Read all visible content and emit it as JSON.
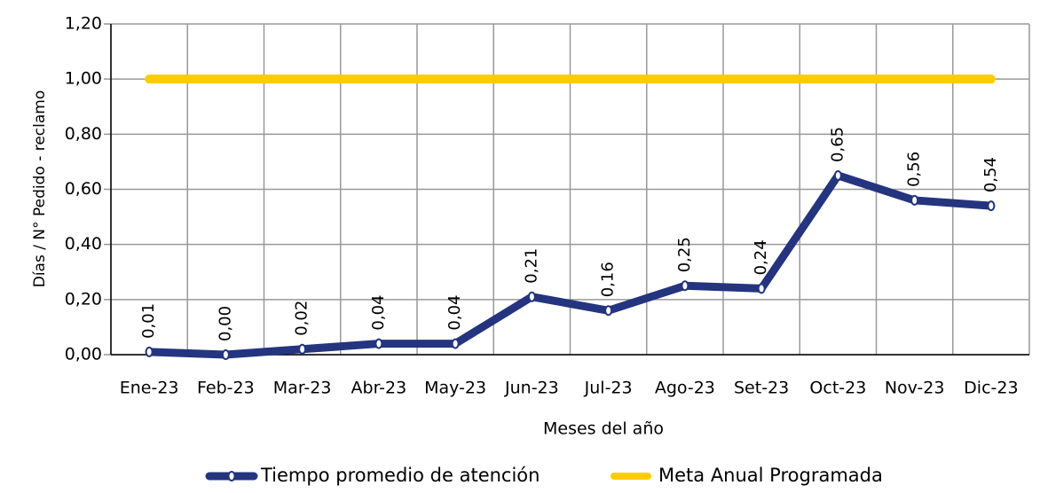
{
  "chart_data": {
    "type": "line",
    "categories": [
      "Ene-23",
      "Feb-23",
      "Mar-23",
      "Abr-23",
      "May-23",
      "Jun-23",
      "Jul-23",
      "Ago-23",
      "Set-23",
      "Oct-23",
      "Nov-23",
      "Dic-23"
    ],
    "series": [
      {
        "name": "Tiempo promedio de atención",
        "color": "#24347f",
        "values": [
          0.01,
          0.0,
          0.02,
          0.04,
          0.04,
          0.21,
          0.16,
          0.25,
          0.24,
          0.65,
          0.56,
          0.54
        ],
        "value_labels": [
          "0,01",
          "0,00",
          "0,02",
          "0,04",
          "0,04",
          "0,21",
          "0,16",
          "0,25",
          "0,24",
          "0,65",
          "0,56",
          "0,54"
        ]
      },
      {
        "name": "Meta Anual Programada",
        "color": "#ffcc00",
        "values": [
          1.0,
          1.0,
          1.0,
          1.0,
          1.0,
          1.0,
          1.0,
          1.0,
          1.0,
          1.0,
          1.0,
          1.0
        ]
      }
    ],
    "x_label": "Meses del año",
    "y_label": "Días / N° Pedido - reclamo",
    "ylim": [
      0,
      1.2
    ],
    "yticks": [
      {
        "value": 0,
        "label": "0,00"
      },
      {
        "value": 0.2,
        "label": "0,20"
      },
      {
        "value": 0.4,
        "label": "0,40"
      },
      {
        "value": 0.6,
        "label": "0,60"
      },
      {
        "value": 0.8,
        "label": "0,80"
      },
      {
        "value": 1.0,
        "label": "1,00"
      },
      {
        "value": 1.2,
        "label": "1,20"
      }
    ],
    "grid": true,
    "legend": "bottom"
  }
}
